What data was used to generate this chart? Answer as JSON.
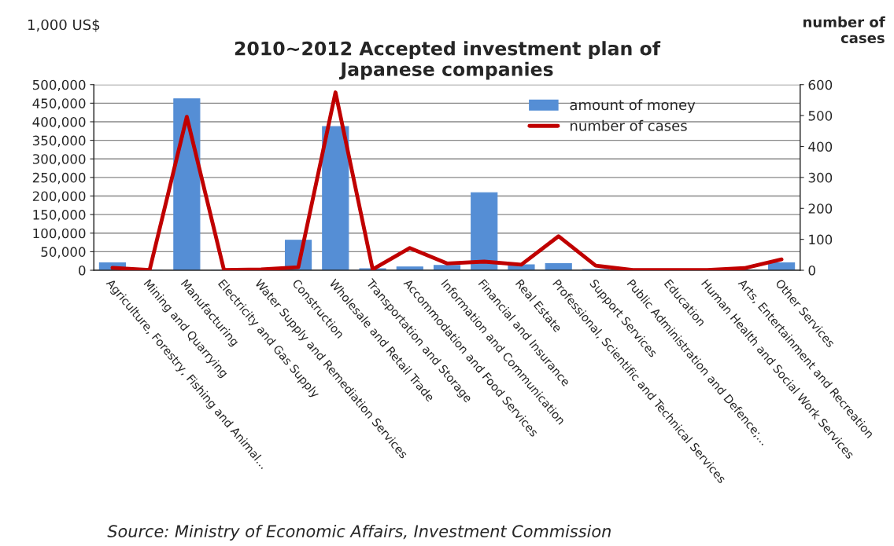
{
  "chart_data": {
    "type": "bar",
    "title": "2010~2012 Accepted investment plan of\nJapanese companies",
    "ylabel": "1,000 US$",
    "y2label": "number of\ncases",
    "categories": [
      "Agriculture, Forestry, Fishing and Animal...",
      "Mining and Quarrying",
      "Manufacturing",
      "Electricity and Gas Supply",
      "Water Supply and Remediation Services",
      "Construction",
      "Wholesale and Retail Trade",
      "Transportation and Storage",
      "Accommodation and Food Services",
      "Information and Communication",
      "Financial and Insurance",
      "Real Estate",
      "Professional, Scientific and Technical Services",
      "Support Services",
      "Public Administration and Defence;...",
      "Education",
      "Human Health and Social Work Services",
      "Arts, Entertainment and Recreation",
      "Other Services"
    ],
    "series": [
      {
        "name": "amount of money",
        "color": "#558ed5",
        "values": [
          20000,
          0,
          462000,
          0,
          0,
          81000,
          387000,
          4000,
          9000,
          13000,
          209000,
          15000,
          18000,
          2000,
          0,
          0,
          0,
          0,
          20000
        ]
      },
      {
        "name": "number of cases",
        "type": "line",
        "axis": "y2",
        "color": "#c00000",
        "values": [
          8,
          1,
          496,
          1,
          3,
          10,
          575,
          3,
          72,
          22,
          28,
          18,
          110,
          15,
          1,
          1,
          1,
          7,
          35
        ]
      }
    ],
    "ylim": [
      0,
      500000
    ],
    "yticks": [
      {
        "value": 0,
        "label": "0"
      },
      {
        "value": 50000,
        "label": "50,000"
      },
      {
        "value": 100000,
        "label": "100,000"
      },
      {
        "value": 150000,
        "label": "150,000"
      },
      {
        "value": 200000,
        "label": "200,000"
      },
      {
        "value": 250000,
        "label": "250,000"
      },
      {
        "value": 300000,
        "label": "300,000"
      },
      {
        "value": 350000,
        "label": "350,000"
      },
      {
        "value": 400000,
        "label": "400,000"
      },
      {
        "value": 450000,
        "label": "450,000"
      },
      {
        "value": 500000,
        "label": "500,000"
      }
    ],
    "y2lim": [
      0,
      600
    ],
    "y2ticks": [
      0,
      100,
      200,
      300,
      400,
      500,
      600
    ],
    "grid": "y",
    "legend": "top right",
    "annotations": [
      "Source: Ministry of Economic Affairs, Investment Commission"
    ]
  }
}
